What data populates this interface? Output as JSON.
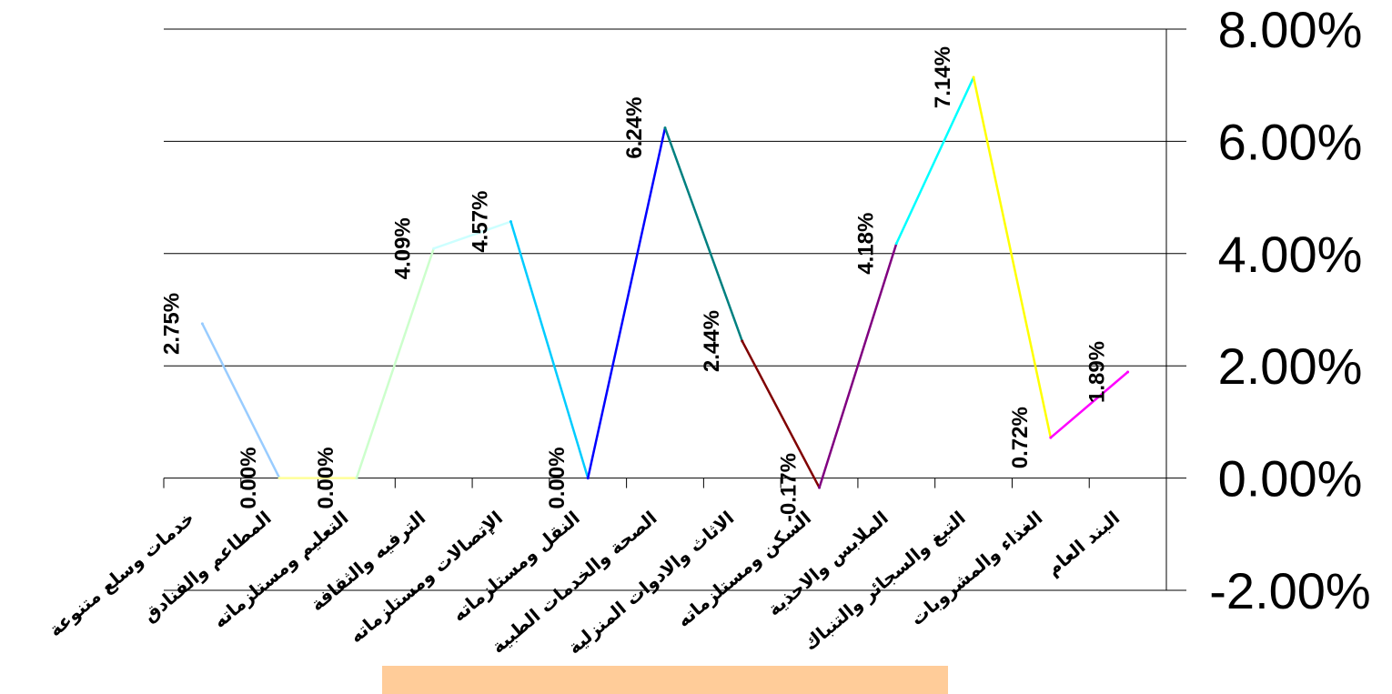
{
  "chart_data": {
    "type": "line",
    "title": "",
    "xlabel": "",
    "ylabel": "",
    "ylim": [
      -2,
      8
    ],
    "y_axis_position": "right",
    "y_ticks": [
      "8.00%",
      "6.00%",
      "4.00%",
      "2.00%",
      "0.00%",
      "-2.00%"
    ],
    "y_tick_values": [
      8,
      6,
      4,
      2,
      0,
      -2
    ],
    "grid": true,
    "categories": [
      "خدمات وسلع متنوعة",
      "المطاعم والفنادق",
      "التعليم ومستلزماته",
      "الترفيه والثقافة",
      "الإتصالات ومستلزماته",
      "النقل ومستلزماته",
      "الصحة والخدمات الطبية",
      "الاثاث والادوات المنزلية",
      "السكن ومستلزماته",
      "الملابس والاحذية",
      "التبغ والسجائر والتنباك",
      "الغذاء والمشروبات",
      "البند العام"
    ],
    "points": [
      {
        "value": 2.75,
        "label": "2.75%",
        "color": "#99ccff"
      },
      {
        "value": 0.0,
        "label": "0.00%",
        "color": "#ffff99"
      },
      {
        "value": 0.0,
        "label": "0.00%",
        "color": "#ccffcc"
      },
      {
        "value": 4.09,
        "label": "4.09%",
        "color": "#ccffff"
      },
      {
        "value": 4.57,
        "label": "4.57%",
        "color": "#00ccff"
      },
      {
        "value": 0.0,
        "label": "0.00%",
        "color": "#0000ff"
      },
      {
        "value": 6.24,
        "label": "6.24%",
        "color": "#008080"
      },
      {
        "value": 2.44,
        "label": "2.44%",
        "color": "#800000"
      },
      {
        "value": -0.17,
        "label": "-0.17%",
        "color": "#800080"
      },
      {
        "value": 4.18,
        "label": "4.18%",
        "color": "#00ffff"
      },
      {
        "value": 7.14,
        "label": "7.14%",
        "color": "#ffff00"
      },
      {
        "value": 0.72,
        "label": "0.72%",
        "color": "#ff00ff"
      },
      {
        "value": 1.89,
        "label": "1.89%",
        "color": null
      }
    ],
    "legend": "none"
  },
  "caption": {
    "text": "",
    "background": "#ffcc99"
  }
}
